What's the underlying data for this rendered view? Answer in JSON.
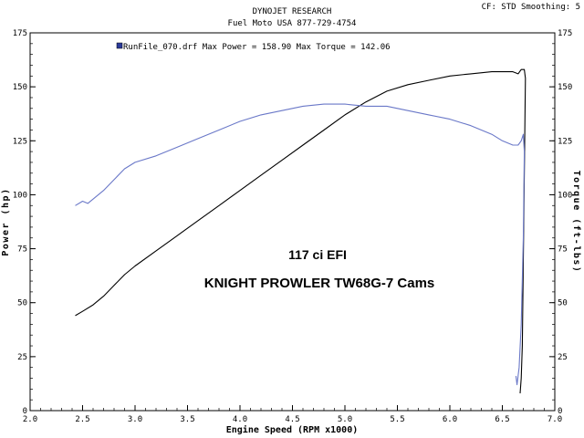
{
  "header": {
    "line1": "DYNOJET RESEARCH",
    "line2": "Fuel Moto USA 877-729-4754",
    "settings": "CF: STD  Smoothing: 5"
  },
  "chart_data": {
    "type": "line",
    "xlabel": "Engine Speed (RPM x1000)",
    "ylabel_left": "Power (hp)",
    "ylabel_right": "Torque (ft-lbs)",
    "xlim": [
      2.0,
      7.0
    ],
    "ylim": [
      0,
      175
    ],
    "xticks": [
      "2.0",
      "2.5",
      "3.0",
      "3.5",
      "4.0",
      "4.5",
      "5.0",
      "5.5",
      "6.0",
      "6.5",
      "7.0"
    ],
    "yticks": [
      "0",
      "25",
      "50",
      "75",
      "100",
      "125",
      "150",
      "175"
    ],
    "grid": false,
    "legend": {
      "position": "top-left",
      "text": "RunFile_070.drf Max Power = 158.90    Max Torque = 142.06",
      "color": "#2a3a9a"
    },
    "annotations": [
      "117 ci EFI",
      "KNIGHT PROWLER TW68G-7 Cams"
    ],
    "series": [
      {
        "color": "#000000",
        "points": [
          [
            2.43,
            44
          ],
          [
            2.5,
            46
          ],
          [
            2.6,
            49
          ],
          [
            2.7,
            53
          ],
          [
            2.8,
            58
          ],
          [
            2.9,
            63
          ],
          [
            3.0,
            67
          ],
          [
            3.2,
            74
          ],
          [
            3.4,
            81
          ],
          [
            3.6,
            88
          ],
          [
            3.8,
            95
          ],
          [
            4.0,
            102
          ],
          [
            4.2,
            109
          ],
          [
            4.4,
            116
          ],
          [
            4.6,
            123
          ],
          [
            4.8,
            130
          ],
          [
            5.0,
            137
          ],
          [
            5.2,
            143
          ],
          [
            5.4,
            148
          ],
          [
            5.6,
            151
          ],
          [
            5.8,
            153
          ],
          [
            6.0,
            155
          ],
          [
            6.2,
            156
          ],
          [
            6.4,
            157
          ],
          [
            6.5,
            157
          ],
          [
            6.6,
            157
          ],
          [
            6.65,
            156
          ],
          [
            6.68,
            158
          ],
          [
            6.71,
            158
          ],
          [
            6.72,
            154
          ],
          [
            6.71,
            110
          ],
          [
            6.7,
            70
          ],
          [
            6.69,
            30
          ],
          [
            6.68,
            15
          ],
          [
            6.67,
            8
          ]
        ]
      },
      {
        "color": "#6a78c8",
        "points": [
          [
            2.43,
            95
          ],
          [
            2.5,
            97
          ],
          [
            2.55,
            96
          ],
          [
            2.6,
            98
          ],
          [
            2.7,
            102
          ],
          [
            2.8,
            107
          ],
          [
            2.9,
            112
          ],
          [
            3.0,
            115
          ],
          [
            3.2,
            118
          ],
          [
            3.4,
            122
          ],
          [
            3.6,
            126
          ],
          [
            3.8,
            130
          ],
          [
            4.0,
            134
          ],
          [
            4.2,
            137
          ],
          [
            4.4,
            139
          ],
          [
            4.6,
            141
          ],
          [
            4.8,
            142
          ],
          [
            5.0,
            142
          ],
          [
            5.2,
            141
          ],
          [
            5.4,
            141
          ],
          [
            5.6,
            139
          ],
          [
            5.8,
            137
          ],
          [
            6.0,
            135
          ],
          [
            6.2,
            132
          ],
          [
            6.4,
            128
          ],
          [
            6.5,
            125
          ],
          [
            6.6,
            123
          ],
          [
            6.65,
            123
          ],
          [
            6.68,
            125
          ],
          [
            6.7,
            128
          ],
          [
            6.71,
            120
          ],
          [
            6.7,
            80
          ],
          [
            6.68,
            40
          ],
          [
            6.66,
            20
          ],
          [
            6.64,
            12
          ],
          [
            6.63,
            16
          ]
        ]
      }
    ]
  }
}
